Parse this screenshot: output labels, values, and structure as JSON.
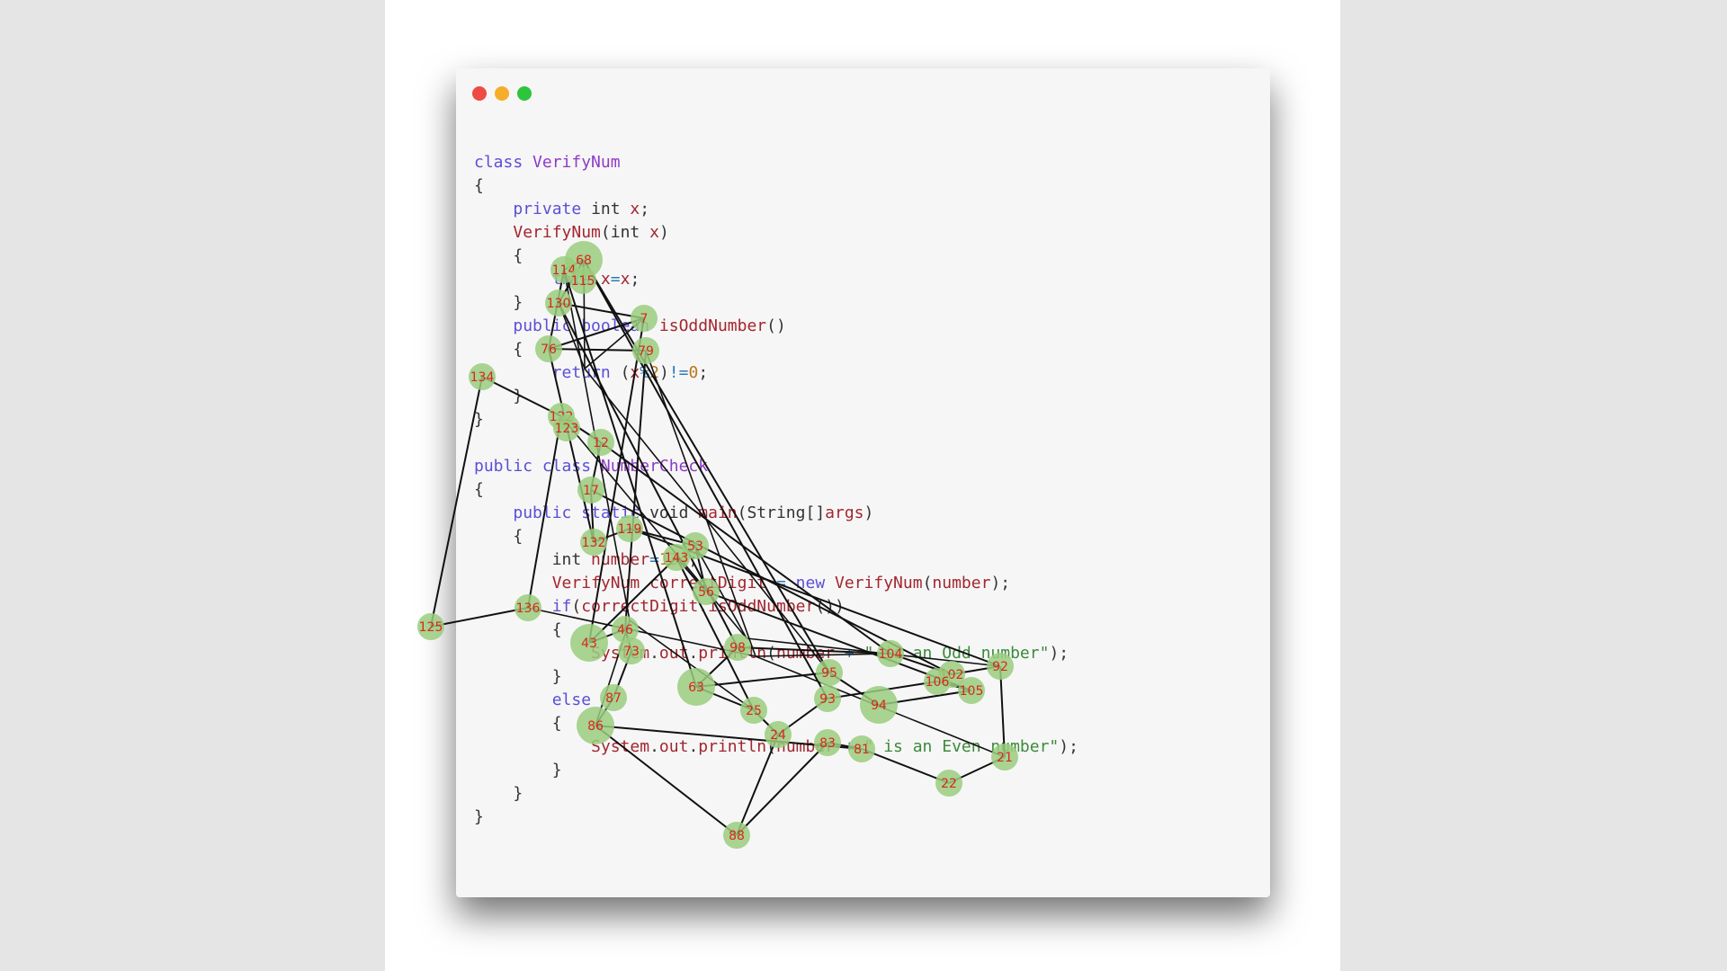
{
  "colors": {
    "window_bg": "#f6f6f6",
    "keyword": "#5b4fd6",
    "class_name": "#8e3bc7",
    "identifier": "#a3262f",
    "operator": "#2d7ab8",
    "number": "#b9781b",
    "string": "#3c8a3c",
    "node_fill": "#9acd7e",
    "node_label": "#d9261c",
    "edge": "#111111"
  },
  "window": {
    "buttons": [
      "close",
      "minimize",
      "zoom"
    ]
  },
  "code": {
    "lines": [
      [
        {
          "t": "kw",
          "v": "class "
        },
        {
          "t": "cls",
          "v": "VerifyNum"
        }
      ],
      [
        {
          "t": "plain",
          "v": "{"
        }
      ],
      [
        {
          "t": "plain",
          "v": "    "
        },
        {
          "t": "kw",
          "v": "private "
        },
        {
          "t": "plain",
          "v": "int "
        },
        {
          "t": "id",
          "v": "x"
        },
        {
          "t": "plain",
          "v": ";"
        }
      ],
      [
        {
          "t": "plain",
          "v": "    "
        },
        {
          "t": "id",
          "v": "VerifyNum"
        },
        {
          "t": "plain",
          "v": "(int "
        },
        {
          "t": "id",
          "v": "x"
        },
        {
          "t": "plain",
          "v": ")"
        }
      ],
      [
        {
          "t": "plain",
          "v": "    {"
        }
      ],
      [
        {
          "t": "plain",
          "v": "        "
        },
        {
          "t": "kw",
          "v": "this"
        },
        {
          "t": "plain",
          "v": "."
        },
        {
          "t": "id",
          "v": "x"
        },
        {
          "t": "op",
          "v": "="
        },
        {
          "t": "id",
          "v": "x"
        },
        {
          "t": "plain",
          "v": ";"
        }
      ],
      [
        {
          "t": "plain",
          "v": "    }"
        }
      ],
      [
        {
          "t": "plain",
          "v": "    "
        },
        {
          "t": "kw",
          "v": "public "
        },
        {
          "t": "kw",
          "v": "boolean "
        },
        {
          "t": "id",
          "v": "isOddNumber"
        },
        {
          "t": "plain",
          "v": "()"
        }
      ],
      [
        {
          "t": "plain",
          "v": "    {"
        }
      ],
      [
        {
          "t": "plain",
          "v": "        "
        },
        {
          "t": "kw",
          "v": "return "
        },
        {
          "t": "plain",
          "v": "("
        },
        {
          "t": "id",
          "v": "x"
        },
        {
          "t": "op",
          "v": "%"
        },
        {
          "t": "num",
          "v": "2"
        },
        {
          "t": "plain",
          "v": ")"
        },
        {
          "t": "op",
          "v": "!="
        },
        {
          "t": "num",
          "v": "0"
        },
        {
          "t": "plain",
          "v": ";"
        }
      ],
      [
        {
          "t": "plain",
          "v": "    }"
        }
      ],
      [
        {
          "t": "plain",
          "v": "}"
        }
      ],
      [
        {
          "t": "plain",
          "v": ""
        }
      ],
      [
        {
          "t": "kw",
          "v": "public "
        },
        {
          "t": "kw",
          "v": "class "
        },
        {
          "t": "cls",
          "v": "NumberCheck"
        }
      ],
      [
        {
          "t": "plain",
          "v": "{"
        }
      ],
      [
        {
          "t": "plain",
          "v": "    "
        },
        {
          "t": "kw",
          "v": "public "
        },
        {
          "t": "kw",
          "v": "static "
        },
        {
          "t": "plain",
          "v": "void "
        },
        {
          "t": "id",
          "v": "main"
        },
        {
          "t": "plain",
          "v": "(String[]"
        },
        {
          "t": "id",
          "v": "args"
        },
        {
          "t": "plain",
          "v": ")"
        }
      ],
      [
        {
          "t": "plain",
          "v": "    {"
        }
      ],
      [
        {
          "t": "plain",
          "v": "        int "
        },
        {
          "t": "id",
          "v": "number"
        },
        {
          "t": "op",
          "v": "="
        },
        {
          "t": "num",
          "v": "134"
        },
        {
          "t": "plain",
          "v": ";"
        }
      ],
      [
        {
          "t": "plain",
          "v": "        "
        },
        {
          "t": "id",
          "v": "VerifyNum "
        },
        {
          "t": "id",
          "v": "correctDigit"
        },
        {
          "t": "plain",
          "v": " "
        },
        {
          "t": "op",
          "v": "="
        },
        {
          "t": "plain",
          "v": " "
        },
        {
          "t": "kw",
          "v": "new "
        },
        {
          "t": "id",
          "v": "VerifyNum"
        },
        {
          "t": "plain",
          "v": "("
        },
        {
          "t": "id",
          "v": "number"
        },
        {
          "t": "plain",
          "v": ");"
        }
      ],
      [
        {
          "t": "plain",
          "v": "        "
        },
        {
          "t": "kw",
          "v": "if"
        },
        {
          "t": "plain",
          "v": "("
        },
        {
          "t": "id",
          "v": "correctDigit"
        },
        {
          "t": "plain",
          "v": "."
        },
        {
          "t": "id",
          "v": "isOddNumber"
        },
        {
          "t": "plain",
          "v": "())"
        }
      ],
      [
        {
          "t": "plain",
          "v": "        {"
        }
      ],
      [
        {
          "t": "plain",
          "v": "            "
        },
        {
          "t": "id",
          "v": "System"
        },
        {
          "t": "plain",
          "v": "."
        },
        {
          "t": "id",
          "v": "out"
        },
        {
          "t": "plain",
          "v": "."
        },
        {
          "t": "id",
          "v": "println"
        },
        {
          "t": "plain",
          "v": "("
        },
        {
          "t": "id",
          "v": "number"
        },
        {
          "t": "op",
          "v": " + "
        },
        {
          "t": "str",
          "v": "\" is an Odd number\""
        },
        {
          "t": "plain",
          "v": ");"
        }
      ],
      [
        {
          "t": "plain",
          "v": "        }"
        }
      ],
      [
        {
          "t": "plain",
          "v": "        "
        },
        {
          "t": "kw",
          "v": "else"
        }
      ],
      [
        {
          "t": "plain",
          "v": "        {"
        }
      ],
      [
        {
          "t": "plain",
          "v": "            "
        },
        {
          "t": "id",
          "v": "System"
        },
        {
          "t": "plain",
          "v": "."
        },
        {
          "t": "id",
          "v": "out"
        },
        {
          "t": "plain",
          "v": "."
        },
        {
          "t": "id",
          "v": "println"
        },
        {
          "t": "plain",
          "v": "("
        },
        {
          "t": "id",
          "v": "number"
        },
        {
          "t": "op",
          "v": " + "
        },
        {
          "t": "str",
          "v": "\" is an Even number\""
        },
        {
          "t": "plain",
          "v": ");"
        }
      ],
      [
        {
          "t": "plain",
          "v": "        }"
        }
      ],
      [
        {
          "t": "plain",
          "v": "    }"
        }
      ],
      [
        {
          "t": "plain",
          "v": "}"
        }
      ]
    ]
  },
  "graph": {
    "nodes": [
      {
        "id": "68",
        "big": true
      },
      {
        "id": "114"
      },
      {
        "id": "115"
      },
      {
        "id": "130"
      },
      {
        "id": "7"
      },
      {
        "id": "76"
      },
      {
        "id": "79"
      },
      {
        "id": "134"
      },
      {
        "id": "125"
      },
      {
        "id": "136"
      },
      {
        "id": "122"
      },
      {
        "id": "123"
      },
      {
        "id": "12"
      },
      {
        "id": "17"
      },
      {
        "id": "132"
      },
      {
        "id": "119"
      },
      {
        "id": "53"
      },
      {
        "id": "56"
      },
      {
        "id": "143"
      },
      {
        "id": "43",
        "big": true
      },
      {
        "id": "46"
      },
      {
        "id": "73"
      },
      {
        "id": "87"
      },
      {
        "id": "86",
        "big": true
      },
      {
        "id": "25"
      },
      {
        "id": "24"
      },
      {
        "id": "83"
      },
      {
        "id": "81"
      },
      {
        "id": "88"
      },
      {
        "id": "93"
      },
      {
        "id": "94",
        "big": true
      },
      {
        "id": "104"
      },
      {
        "id": "102"
      },
      {
        "id": "92"
      },
      {
        "id": "105"
      },
      {
        "id": "106"
      },
      {
        "id": "21"
      },
      {
        "id": "22"
      },
      {
        "id": "63",
        "big": true
      },
      {
        "id": "95"
      },
      {
        "id": "98"
      }
    ]
  }
}
